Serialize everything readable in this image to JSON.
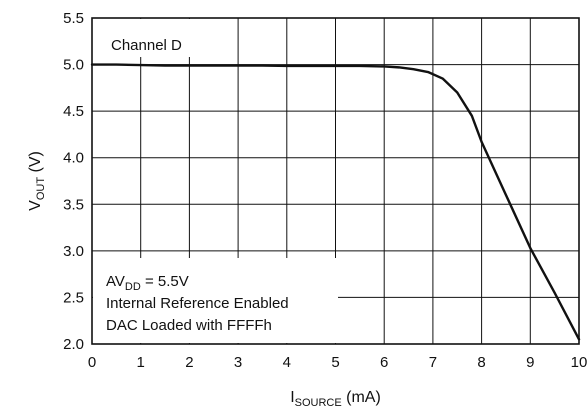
{
  "chart_data": {
    "type": "line",
    "title": "",
    "xlabel": {
      "main": "I",
      "sub": "SOURCE",
      "unit": " (mA)"
    },
    "ylabel": {
      "main": "V",
      "sub": "OUT",
      "unit": " (V)"
    },
    "xlim": [
      0,
      10
    ],
    "ylim": [
      2.0,
      5.5
    ],
    "xticks": [
      "0",
      "1",
      "2",
      "3",
      "4",
      "5",
      "6",
      "7",
      "8",
      "9",
      "10"
    ],
    "yticks": [
      "2.0",
      "2.5",
      "3.0",
      "3.5",
      "4.0",
      "4.5",
      "5.0",
      "5.5"
    ],
    "grid": true,
    "series": [
      {
        "x": [
          0,
          0.5,
          1,
          1.5,
          2,
          2.5,
          3,
          3.5,
          4,
          4.5,
          5,
          5.5,
          6,
          6.3,
          6.6,
          6.9,
          7.2,
          7.5,
          7.8,
          8.0,
          8.5,
          9.0,
          9.5,
          10
        ],
        "y": [
          5.0,
          5.0,
          4.995,
          4.99,
          4.99,
          4.99,
          4.99,
          4.99,
          4.985,
          4.985,
          4.985,
          4.985,
          4.98,
          4.97,
          4.95,
          4.92,
          4.85,
          4.7,
          4.45,
          4.17,
          3.6,
          3.03,
          2.55,
          2.05
        ]
      }
    ],
    "annotations": {
      "top_label": "Channel D",
      "av_main": "AV",
      "av_sub": "DD",
      "av_value": " = 5.5V",
      "line2": "Internal Reference Enabled",
      "line3": "DAC Loaded with FFFFh"
    }
  }
}
